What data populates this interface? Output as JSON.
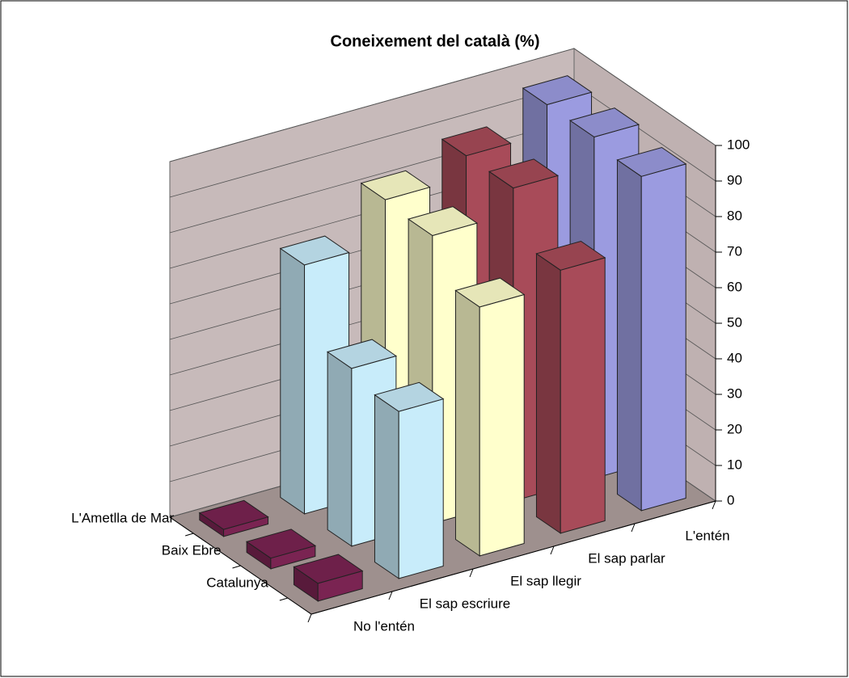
{
  "chart_data": {
    "type": "bar3d",
    "title": "Coneixement del català (%)",
    "categories": [
      "No l'entén",
      "El sap escriure",
      "El sap llegir",
      "El sap parlar",
      "L'entén"
    ],
    "colors": [
      "#7a2452",
      "#c8ecfa",
      "#ffffcc",
      "#a84b59",
      "#9b9be0"
    ],
    "series": [
      {
        "name": "L'Ametlla de Mar",
        "values": [
          2,
          70,
          82,
          88,
          96
        ]
      },
      {
        "name": "Baix Ebre",
        "values": [
          3,
          50,
          81,
          88,
          96
        ]
      },
      {
        "name": "Catalunya",
        "values": [
          5,
          47,
          70,
          74,
          94
        ]
      }
    ],
    "ylim": [
      0,
      100
    ],
    "yticks": [
      0,
      10,
      20,
      30,
      40,
      50,
      60,
      70,
      80,
      90,
      100
    ],
    "grid": true
  }
}
